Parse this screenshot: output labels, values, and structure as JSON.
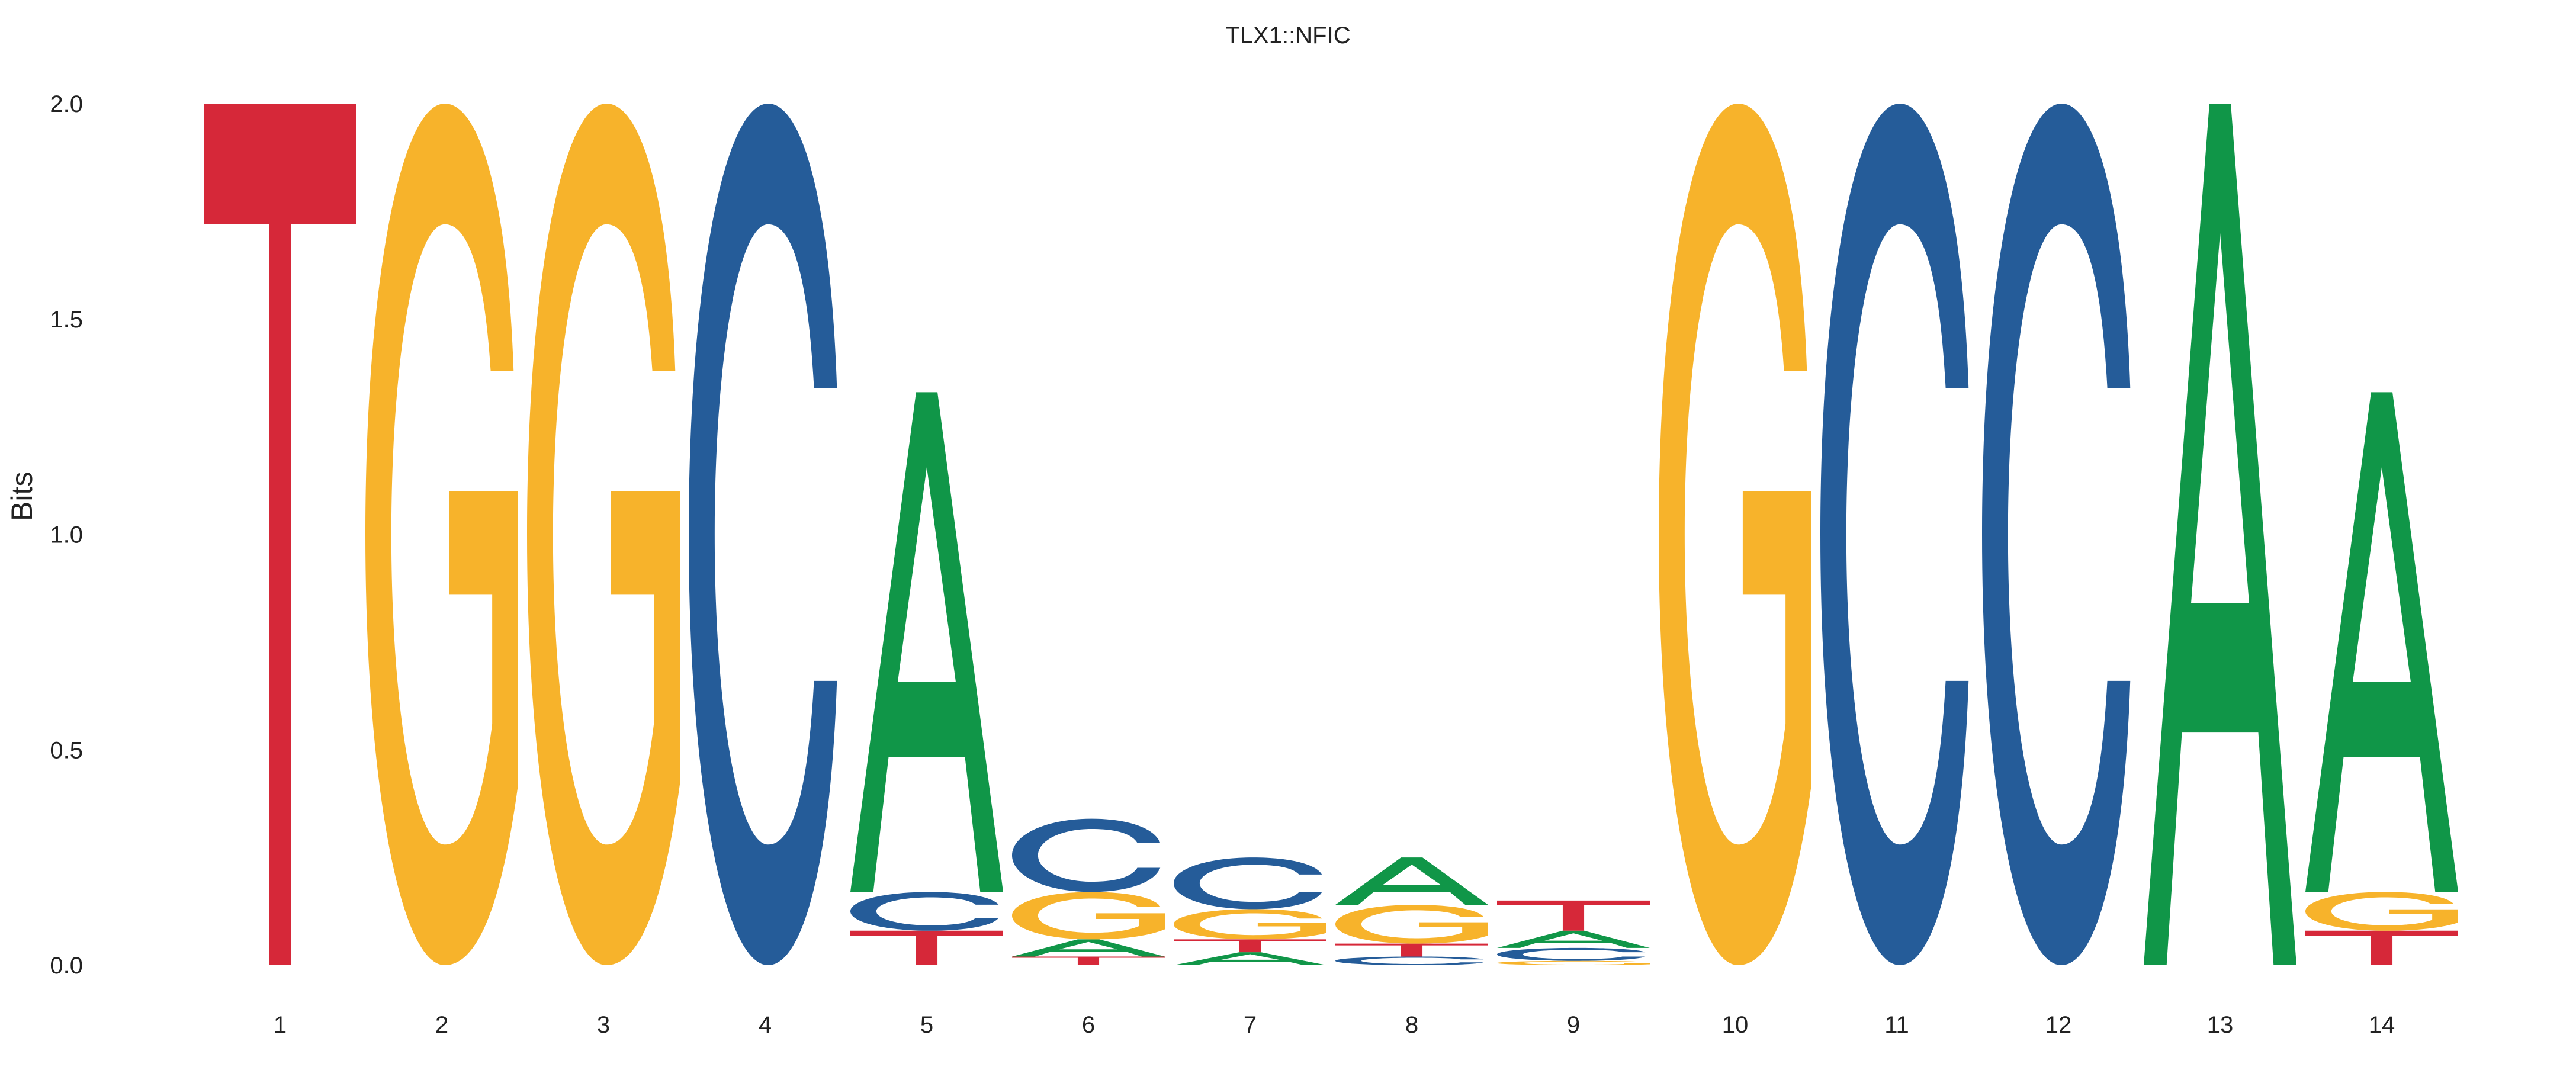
{
  "chart_data": {
    "type": "sequence-logo",
    "title": "TLX1::NFIC",
    "ylabel": "Bits",
    "xlabel": "",
    "ylim": [
      0,
      2
    ],
    "yticks": [
      "0.0",
      "0.5",
      "1.0",
      "1.5",
      "2.0"
    ],
    "grid": false,
    "colors": {
      "A": "#109648",
      "C": "#255C99",
      "G": "#F7B32B",
      "T": "#D62839"
    },
    "positions": [
      {
        "x": "1",
        "letters": [
          {
            "base": "T",
            "bits": 2.0
          }
        ]
      },
      {
        "x": "2",
        "letters": [
          {
            "base": "G",
            "bits": 2.0
          }
        ]
      },
      {
        "x": "3",
        "letters": [
          {
            "base": "G",
            "bits": 2.0
          }
        ]
      },
      {
        "x": "4",
        "letters": [
          {
            "base": "C",
            "bits": 2.0
          }
        ]
      },
      {
        "x": "5",
        "letters": [
          {
            "base": "T",
            "bits": 0.08
          },
          {
            "base": "C",
            "bits": 0.09
          },
          {
            "base": "A",
            "bits": 1.16
          }
        ]
      },
      {
        "x": "6",
        "letters": [
          {
            "base": "T",
            "bits": 0.02
          },
          {
            "base": "A",
            "bits": 0.04
          },
          {
            "base": "G",
            "bits": 0.11
          },
          {
            "base": "C",
            "bits": 0.17
          }
        ]
      },
      {
        "x": "7",
        "letters": [
          {
            "base": "A",
            "bits": 0.03
          },
          {
            "base": "T",
            "bits": 0.03
          },
          {
            "base": "G",
            "bits": 0.07
          },
          {
            "base": "C",
            "bits": 0.12
          }
        ]
      },
      {
        "x": "8",
        "letters": [
          {
            "base": "C",
            "bits": 0.02
          },
          {
            "base": "T",
            "bits": 0.03
          },
          {
            "base": "G",
            "bits": 0.09
          },
          {
            "base": "A",
            "bits": 0.11
          }
        ]
      },
      {
        "x": "9",
        "letters": [
          {
            "base": "G",
            "bits": 0.01
          },
          {
            "base": "C",
            "bits": 0.03
          },
          {
            "base": "A",
            "bits": 0.04
          },
          {
            "base": "T",
            "bits": 0.07
          }
        ]
      },
      {
        "x": "10",
        "letters": [
          {
            "base": "G",
            "bits": 2.0
          }
        ]
      },
      {
        "x": "11",
        "letters": [
          {
            "base": "C",
            "bits": 2.0
          }
        ]
      },
      {
        "x": "12",
        "letters": [
          {
            "base": "C",
            "bits": 2.0
          }
        ]
      },
      {
        "x": "13",
        "letters": [
          {
            "base": "A",
            "bits": 2.0
          }
        ]
      },
      {
        "x": "14",
        "letters": [
          {
            "base": "T",
            "bits": 0.08
          },
          {
            "base": "G",
            "bits": 0.09
          },
          {
            "base": "A",
            "bits": 1.16
          }
        ]
      }
    ]
  }
}
